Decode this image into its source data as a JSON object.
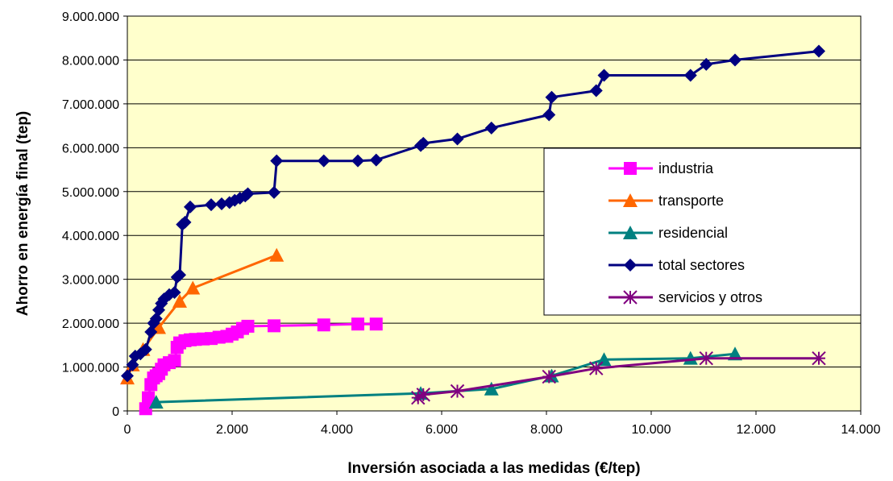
{
  "chart_data": {
    "type": "line",
    "title": "",
    "xlabel": "Inversión asociada a las medidas (€/tep)",
    "ylabel": "Ahorro en energía final (tep)",
    "xlim": [
      0,
      14000
    ],
    "ylim": [
      0,
      9000000
    ],
    "x_ticks": [
      0,
      2000,
      4000,
      6000,
      8000,
      10000,
      12000,
      14000
    ],
    "x_tick_labels": [
      "0",
      "2.000",
      "4.000",
      "6.000",
      "8.000",
      "10.000",
      "12.000",
      "14.000"
    ],
    "y_ticks": [
      0,
      1000000,
      2000000,
      3000000,
      4000000,
      5000000,
      6000000,
      7000000,
      8000000,
      9000000
    ],
    "y_tick_labels": [
      "0",
      "1.000.000",
      "2.000.000",
      "3.000.000",
      "4.000.000",
      "5.000.000",
      "6.000.000",
      "7.000.000",
      "8.000.000",
      "9.000.000"
    ],
    "grid": "horizontal",
    "legend_position": "right",
    "plot_background": "#FFFFCC",
    "series": [
      {
        "name": "industria",
        "color": "#FF00FF",
        "marker": "square",
        "points": [
          [
            350,
            50000
          ],
          [
            400,
            300000
          ],
          [
            450,
            600000
          ],
          [
            500,
            750000
          ],
          [
            550,
            800000
          ],
          [
            600,
            850000
          ],
          [
            650,
            950000
          ],
          [
            700,
            1050000
          ],
          [
            800,
            1100000
          ],
          [
            900,
            1150000
          ],
          [
            950,
            1450000
          ],
          [
            1000,
            1550000
          ],
          [
            1100,
            1600000
          ],
          [
            1200,
            1620000
          ],
          [
            1300,
            1630000
          ],
          [
            1450,
            1640000
          ],
          [
            1600,
            1650000
          ],
          [
            1750,
            1680000
          ],
          [
            1900,
            1700000
          ],
          [
            2000,
            1750000
          ],
          [
            2100,
            1800000
          ],
          [
            2200,
            1880000
          ],
          [
            2300,
            1930000
          ],
          [
            2800,
            1940000
          ],
          [
            3750,
            1960000
          ],
          [
            4400,
            1980000
          ],
          [
            4750,
            1980000
          ]
        ]
      },
      {
        "name": "transporte",
        "color": "#FF6600",
        "marker": "triangle",
        "points": [
          [
            0,
            750000
          ],
          [
            100,
            1050000
          ],
          [
            300,
            1400000
          ],
          [
            600,
            1900000
          ],
          [
            1000,
            2500000
          ],
          [
            1250,
            2800000
          ],
          [
            2850,
            3550000
          ]
        ]
      },
      {
        "name": "residencial",
        "color": "#008080",
        "marker": "triangle",
        "points": [
          [
            550,
            200000
          ],
          [
            5600,
            400000
          ],
          [
            6950,
            500000
          ],
          [
            8100,
            800000
          ],
          [
            9100,
            1170000
          ],
          [
            10750,
            1200000
          ],
          [
            11600,
            1300000
          ]
        ]
      },
      {
        "name": "total sectores",
        "color": "#000080",
        "marker": "diamond",
        "points": [
          [
            0,
            800000
          ],
          [
            100,
            1050000
          ],
          [
            150,
            1250000
          ],
          [
            250,
            1300000
          ],
          [
            350,
            1400000
          ],
          [
            450,
            1800000
          ],
          [
            500,
            2000000
          ],
          [
            550,
            2100000
          ],
          [
            600,
            2300000
          ],
          [
            650,
            2450000
          ],
          [
            700,
            2550000
          ],
          [
            800,
            2650000
          ],
          [
            900,
            2700000
          ],
          [
            950,
            3050000
          ],
          [
            1000,
            3100000
          ],
          [
            1050,
            4250000
          ],
          [
            1100,
            4300000
          ],
          [
            1200,
            4650000
          ],
          [
            1600,
            4700000
          ],
          [
            1800,
            4720000
          ],
          [
            1950,
            4750000
          ],
          [
            2050,
            4800000
          ],
          [
            2150,
            4850000
          ],
          [
            2250,
            4900000
          ],
          [
            2300,
            4950000
          ],
          [
            2800,
            4980000
          ],
          [
            2850,
            5700000
          ],
          [
            3750,
            5700000
          ],
          [
            4400,
            5700000
          ],
          [
            4750,
            5720000
          ],
          [
            5600,
            6050000
          ],
          [
            5650,
            6100000
          ],
          [
            6300,
            6200000
          ],
          [
            6950,
            6450000
          ],
          [
            8050,
            6750000
          ],
          [
            8100,
            7150000
          ],
          [
            8950,
            7300000
          ],
          [
            9100,
            7650000
          ],
          [
            10750,
            7650000
          ],
          [
            11050,
            7900000
          ],
          [
            11600,
            8000000
          ],
          [
            13200,
            8200000
          ]
        ]
      },
      {
        "name": "servicios y otros",
        "color": "#800080",
        "marker": "star",
        "points": [
          [
            5550,
            300000
          ],
          [
            5650,
            370000
          ],
          [
            6300,
            450000
          ],
          [
            8050,
            780000
          ],
          [
            8950,
            970000
          ],
          [
            11050,
            1200000
          ],
          [
            13200,
            1200000
          ]
        ]
      }
    ]
  }
}
